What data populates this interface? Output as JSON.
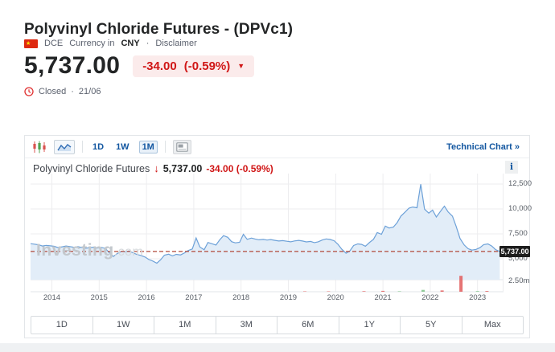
{
  "page": {
    "title": "Polyvinyl Chloride Futures - (DPVc1)",
    "exchange": "DCE",
    "currency_prefix": "Currency in",
    "currency": "CNY",
    "separator": "·",
    "disclaimer": "Disclaimer",
    "price": "5,737.00",
    "change": "-34.00",
    "change_pct": "(-0.59%)",
    "dropdown_arrow": "▼",
    "status": "Closed",
    "status_separator": "·",
    "status_date": "21/06"
  },
  "toolbar": {
    "intervals": [
      "1D",
      "1W",
      "1M"
    ],
    "selected_interval": "1M",
    "technical_chart": "Technical Chart",
    "technical_chart_arrow": "»"
  },
  "chart_header": {
    "title": "Polyvinyl Chloride Futures",
    "down_arrow": "↓",
    "price": "5,737.00",
    "change": "-34.00 (-0.59%)",
    "info_icon": "i"
  },
  "watermark": {
    "brand": "Investing",
    "suffix": ".com"
  },
  "price_tag": "5,737.00",
  "timeframes": [
    "1D",
    "1W",
    "1M",
    "3M",
    "6M",
    "1Y",
    "5Y",
    "Max"
  ],
  "colors": {
    "accent_red": "#d01616",
    "badge_bg": "#fbebeb",
    "link_blue": "#1256a0",
    "line": "#6da1d8",
    "area_fill": "#e2edf8",
    "dashed_price_line": "#b2493a",
    "grid": "#ededef",
    "axis_line": "#e2e5e8",
    "volume_up": "#7cc388",
    "volume_down": "#e25c5c",
    "price_tag_bg": "#1d1d1d"
  },
  "chart_data": {
    "type": "area",
    "title": "Polyvinyl Chloride Futures",
    "legend": "none",
    "grid": true,
    "x_range": [
      2013.55,
      2023.55
    ],
    "x_ticks": [
      2014,
      2015,
      2016,
      2017,
      2018,
      2019,
      2020,
      2021,
      2022,
      2023
    ],
    "price_ticks": [
      {
        "label": "12,500",
        "value": 12500
      },
      {
        "label": "10,000",
        "value": 10000
      },
      {
        "label": "7,500",
        "value": 7500
      },
      {
        "label": "5,000",
        "value": 5000
      }
    ],
    "current_price": 5737.0,
    "current_price_label": "5,737.00",
    "volume_tick": {
      "label": "2.50m",
      "value_m": 2.5
    },
    "volume_axis_max_m": 5.0,
    "series": [
      [
        2013.55,
        6520
      ],
      [
        2013.63,
        6470
      ],
      [
        2013.72,
        6400
      ],
      [
        2013.8,
        6280
      ],
      [
        2013.88,
        6350
      ],
      [
        2013.97,
        6300
      ],
      [
        2014.05,
        6250
      ],
      [
        2014.13,
        6120
      ],
      [
        2014.22,
        6200
      ],
      [
        2014.3,
        6280
      ],
      [
        2014.38,
        6220
      ],
      [
        2014.47,
        6150
      ],
      [
        2014.55,
        6220
      ],
      [
        2014.63,
        6130
      ],
      [
        2014.72,
        6060
      ],
      [
        2014.8,
        6120
      ],
      [
        2014.88,
        6160
      ],
      [
        2014.97,
        6080
      ],
      [
        2015.05,
        6130
      ],
      [
        2015.13,
        6040
      ],
      [
        2015.22,
        5580
      ],
      [
        2015.3,
        5230
      ],
      [
        2015.38,
        5520
      ],
      [
        2015.47,
        5750
      ],
      [
        2015.55,
        5690
      ],
      [
        2015.63,
        5780
      ],
      [
        2015.72,
        5590
      ],
      [
        2015.8,
        5430
      ],
      [
        2015.88,
        5340
      ],
      [
        2015.97,
        5180
      ],
      [
        2016.05,
        4930
      ],
      [
        2016.13,
        4780
      ],
      [
        2016.22,
        4560
      ],
      [
        2016.3,
        4900
      ],
      [
        2016.38,
        5360
      ],
      [
        2016.47,
        5460
      ],
      [
        2016.55,
        5290
      ],
      [
        2016.63,
        5440
      ],
      [
        2016.72,
        5390
      ],
      [
        2016.8,
        5570
      ],
      [
        2016.88,
        5820
      ],
      [
        2016.97,
        5980
      ],
      [
        2017.05,
        7090
      ],
      [
        2017.13,
        6180
      ],
      [
        2017.22,
        5900
      ],
      [
        2017.3,
        6640
      ],
      [
        2017.38,
        6520
      ],
      [
        2017.47,
        6380
      ],
      [
        2017.55,
        6900
      ],
      [
        2017.63,
        7320
      ],
      [
        2017.72,
        7150
      ],
      [
        2017.8,
        6720
      ],
      [
        2017.88,
        6600
      ],
      [
        2017.97,
        6650
      ],
      [
        2018.05,
        7460
      ],
      [
        2018.13,
        6950
      ],
      [
        2018.22,
        7080
      ],
      [
        2018.3,
        6980
      ],
      [
        2018.38,
        6900
      ],
      [
        2018.47,
        6940
      ],
      [
        2018.55,
        6880
      ],
      [
        2018.63,
        6930
      ],
      [
        2018.72,
        6850
      ],
      [
        2018.8,
        6780
      ],
      [
        2018.88,
        6820
      ],
      [
        2018.97,
        6760
      ],
      [
        2019.05,
        6700
      ],
      [
        2019.13,
        6790
      ],
      [
        2019.22,
        6850
      ],
      [
        2019.3,
        6780
      ],
      [
        2019.38,
        6690
      ],
      [
        2019.47,
        6740
      ],
      [
        2019.55,
        6620
      ],
      [
        2019.63,
        6700
      ],
      [
        2019.72,
        6890
      ],
      [
        2019.8,
        6990
      ],
      [
        2019.88,
        6940
      ],
      [
        2019.97,
        6810
      ],
      [
        2020.05,
        6450
      ],
      [
        2020.13,
        5960
      ],
      [
        2020.22,
        5560
      ],
      [
        2020.3,
        5780
      ],
      [
        2020.38,
        6330
      ],
      [
        2020.47,
        6490
      ],
      [
        2020.55,
        6440
      ],
      [
        2020.63,
        6260
      ],
      [
        2020.72,
        6650
      ],
      [
        2020.8,
        6950
      ],
      [
        2020.88,
        7630
      ],
      [
        2020.97,
        7460
      ],
      [
        2021.05,
        8280
      ],
      [
        2021.13,
        8090
      ],
      [
        2021.22,
        8180
      ],
      [
        2021.3,
        8620
      ],
      [
        2021.38,
        9280
      ],
      [
        2021.47,
        9690
      ],
      [
        2021.55,
        10080
      ],
      [
        2021.63,
        10190
      ],
      [
        2021.72,
        10120
      ],
      [
        2021.8,
        12480
      ],
      [
        2021.88,
        9980
      ],
      [
        2021.97,
        9580
      ],
      [
        2022.05,
        9890
      ],
      [
        2022.13,
        9190
      ],
      [
        2022.22,
        9780
      ],
      [
        2022.3,
        10280
      ],
      [
        2022.38,
        9690
      ],
      [
        2022.47,
        9280
      ],
      [
        2022.55,
        8230
      ],
      [
        2022.63,
        7040
      ],
      [
        2022.72,
        6380
      ],
      [
        2022.8,
        6020
      ],
      [
        2022.88,
        5870
      ],
      [
        2022.97,
        5940
      ],
      [
        2023.05,
        6110
      ],
      [
        2023.13,
        6420
      ],
      [
        2023.22,
        6490
      ],
      [
        2023.3,
        6280
      ],
      [
        2023.38,
        5930
      ],
      [
        2023.47,
        5737
      ]
    ],
    "volume_bars": [
      {
        "x": 2019.35,
        "v_m": 0.1,
        "dir": "down"
      },
      {
        "x": 2019.85,
        "v_m": 0.09,
        "dir": "down"
      },
      {
        "x": 2020.6,
        "v_m": 0.13,
        "dir": "down"
      },
      {
        "x": 2021.0,
        "v_m": 0.22,
        "dir": "down"
      },
      {
        "x": 2021.35,
        "v_m": 0.12,
        "dir": "up"
      },
      {
        "x": 2021.85,
        "v_m": 0.45,
        "dir": "up"
      },
      {
        "x": 2022.25,
        "v_m": 0.3,
        "dir": "down"
      },
      {
        "x": 2022.65,
        "v_m": 3.8,
        "dir": "down"
      },
      {
        "x": 2023.0,
        "v_m": 0.15,
        "dir": "up"
      },
      {
        "x": 2023.2,
        "v_m": 0.18,
        "dir": "down"
      }
    ]
  }
}
